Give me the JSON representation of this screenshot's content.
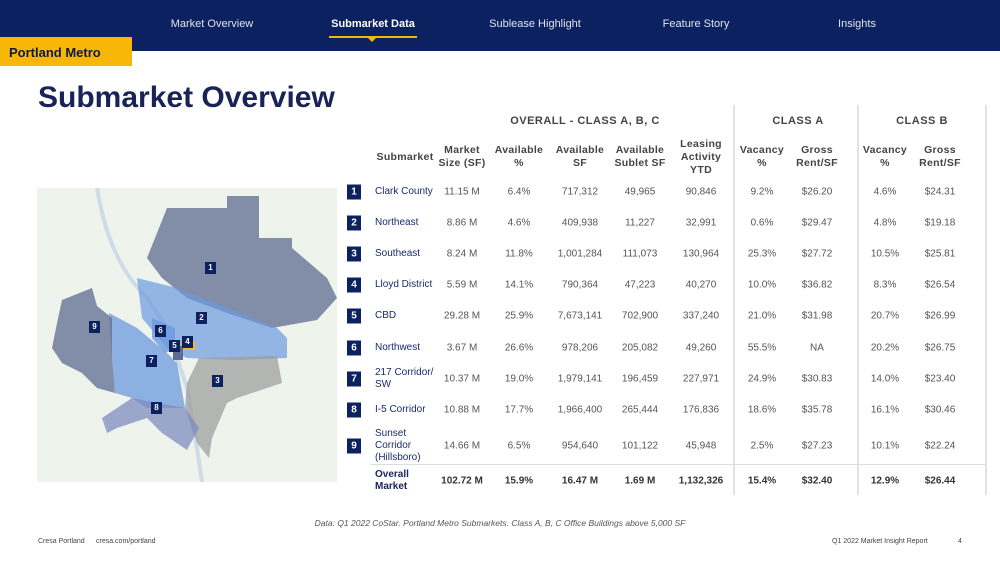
{
  "nav": {
    "items": [
      {
        "label": "Market Overview"
      },
      {
        "label": "Submarket Data",
        "active": true
      },
      {
        "label": "Sublease Highlight"
      },
      {
        "label": "Feature Story"
      },
      {
        "label": "Insights"
      }
    ]
  },
  "region_tag": "Portland Metro",
  "page_title": "Submarket Overview",
  "colors": {
    "navy": "#0c2160",
    "accent": "#f8b606",
    "title": "#1a2358"
  },
  "table": {
    "groups": {
      "overall": "OVERALL - CLASS A, B, C",
      "class_a": "CLASS A",
      "class_b": "CLASS B"
    },
    "headers": [
      "Submarket",
      "Market Size (SF)",
      "Available %",
      "Available SF",
      "Available Sublet SF",
      "Leasing Activity YTD",
      "Vacancy %",
      "Gross Rent/SF",
      "Vacancy %",
      "Gross Rent/SF"
    ],
    "rows": [
      {
        "num": "1",
        "name": "Clark County",
        "cells": [
          "11.15 M",
          "6.4%",
          "717,312",
          "49,965",
          "90,846",
          "9.2%",
          "$26.20",
          "4.6%",
          "$24.31"
        ]
      },
      {
        "num": "2",
        "name": "Northeast",
        "cells": [
          "8.86 M",
          "4.6%",
          "409,938",
          "11,227",
          "32,991",
          "0.6%",
          "$29.47",
          "4.8%",
          "$19.18"
        ]
      },
      {
        "num": "3",
        "name": "Southeast",
        "cells": [
          "8.24 M",
          "11.8%",
          "1,001,284",
          "111,073",
          "130,964",
          "25.3%",
          "$27.72",
          "10.5%",
          "$25.81"
        ]
      },
      {
        "num": "4",
        "name": "Lloyd District",
        "cells": [
          "5.59 M",
          "14.1%",
          "790,364",
          "47,223",
          "40,270",
          "10.0%",
          "$36.82",
          "8.3%",
          "$26.54"
        ]
      },
      {
        "num": "5",
        "name": "CBD",
        "cells": [
          "29.28 M",
          "25.9%",
          "7,673,141",
          "702,900",
          "337,240",
          "21.0%",
          "$31.98",
          "20.7%",
          "$26.99"
        ]
      },
      {
        "num": "6",
        "name": "Northwest",
        "cells": [
          "3.67 M",
          "26.6%",
          "978,206",
          "205,082",
          "49,260",
          "55.5%",
          "NA",
          "20.2%",
          "$26.75"
        ]
      },
      {
        "num": "7",
        "name": "217 Corridor/ SW",
        "cells": [
          "10.37 M",
          "19.0%",
          "1,979,141",
          "196,459",
          "227,971",
          "24.9%",
          "$30.83",
          "14.0%",
          "$23.40"
        ]
      },
      {
        "num": "8",
        "name": "I-5 Corridor",
        "cells": [
          "10.88 M",
          "17.7%",
          "1,966,400",
          "265,444",
          "176,836",
          "18.6%",
          "$35.78",
          "16.1%",
          "$30.46"
        ]
      },
      {
        "num": "9",
        "name": "Sunset Corridor (Hillsboro)",
        "cells": [
          "14.66 M",
          "6.5%",
          "954,640",
          "101,122",
          "45,948",
          "2.5%",
          "$27.23",
          "10.1%",
          "$22.24"
        ]
      }
    ],
    "total": {
      "name": "Overall Market",
      "cells": [
        "102.72 M",
        "15.9%",
        "16.47 M",
        "1.69 M",
        "1,132,326",
        "15.4%",
        "$32.40",
        "12.9%",
        "$26.44"
      ]
    }
  },
  "map": {
    "labels": [
      "1",
      "2",
      "3",
      "4",
      "5",
      "6",
      "7",
      "8",
      "9"
    ]
  },
  "source": "Data: Q1 2022 CoStar. Portland Metro Submarkets. Class A, B, C Office Buildings above 5,000 SF",
  "footer": {
    "company": "Cresa Portland",
    "url": "cresa.com/portland",
    "report": "Q1 2022 Market Insight Report",
    "page": "4"
  }
}
